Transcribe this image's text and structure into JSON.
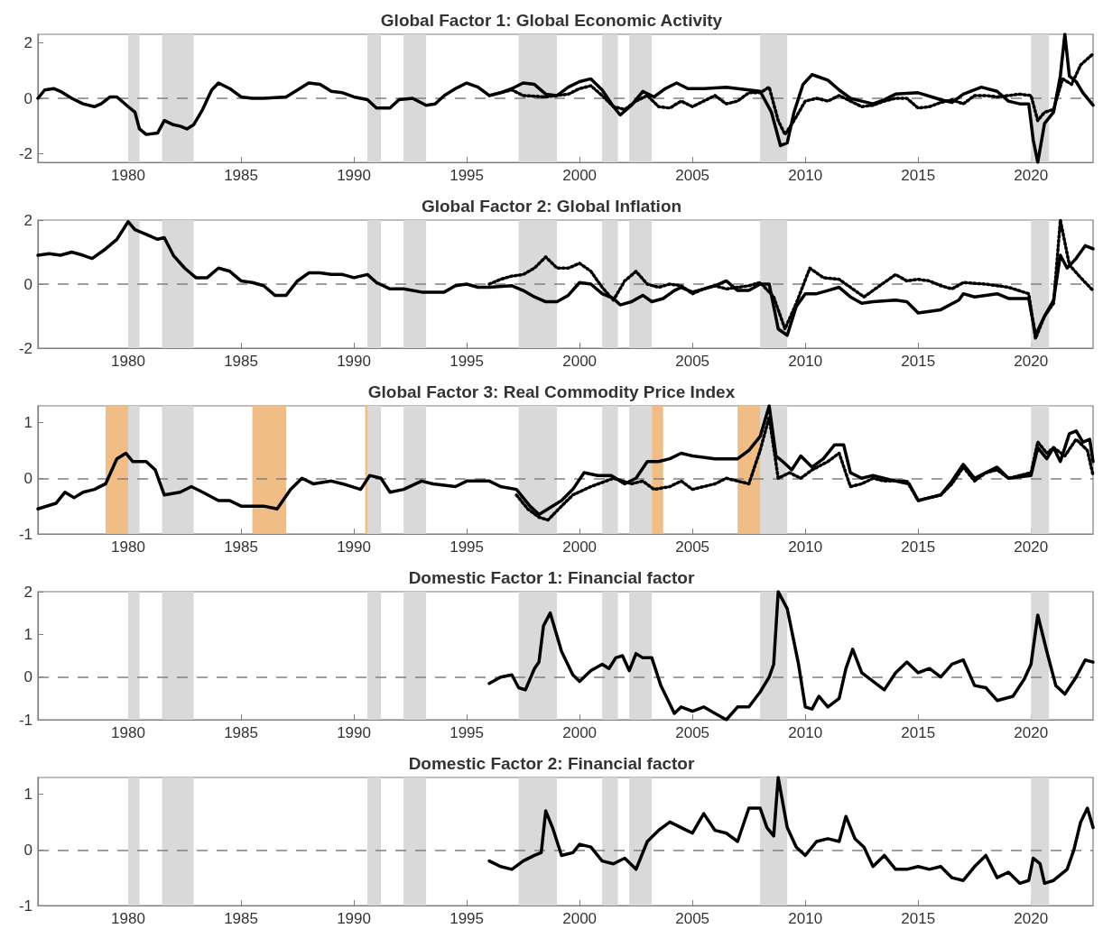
{
  "chart_data": [
    {
      "type": "line",
      "title": "Global Factor 1: Global Economic Activity",
      "xlim": [
        1976,
        2022.75
      ],
      "xticks": [
        1980,
        1985,
        1990,
        1995,
        2000,
        2005,
        2010,
        2015,
        2020
      ],
      "ylim": [
        -2.3,
        2.3
      ],
      "yticks": [
        -2,
        0,
        2
      ],
      "series": [
        {
          "color": "#000000",
          "line_style": "solid",
          "x": [
            1976.0,
            1976.3,
            1976.7,
            1977.0,
            1977.5,
            1978.0,
            1978.5,
            1978.8,
            1979.2,
            1979.5,
            1980.0,
            1980.3,
            1980.5,
            1980.8,
            1981.3,
            1981.6,
            1982.0,
            1982.3,
            1982.6,
            1982.9,
            1983.3,
            1983.7,
            1984.0,
            1984.5,
            1985.0,
            1985.5,
            1986.0,
            1987.0,
            1987.5,
            1988.0,
            1988.5,
            1989.0,
            1989.5,
            1990.0,
            1990.6,
            1991.0,
            1991.6,
            1992.0,
            1992.6,
            1993.2,
            1993.6,
            1994.0,
            1994.5,
            1995.0,
            1995.5,
            1996.0,
            1996.5,
            1997.0,
            1997.5,
            1998.0,
            1998.5,
            1999.0,
            1999.5,
            2000.0,
            2000.5,
            2001.0,
            2001.5,
            2001.8,
            2002.3,
            2002.8,
            2003.3,
            2003.8,
            2004.3,
            2004.8,
            2005.5,
            2006.5,
            2007.5,
            2008.0,
            2008.5,
            2008.9,
            2009.2,
            2009.5,
            2009.9,
            2010.3,
            2011.0,
            2011.5,
            2012.0,
            2012.5,
            2013.0,
            2013.5,
            2014.0,
            2015.0,
            2016.0,
            2016.5,
            2017.0,
            2017.8,
            2018.5,
            2019.0,
            2019.5,
            2019.9,
            2020.1,
            2020.3,
            2020.6,
            2021.0,
            2021.3,
            2021.5,
            2021.7,
            2022.0,
            2022.3,
            2022.75
          ],
          "values": [
            0.0,
            0.3,
            0.35,
            0.25,
            0.0,
            -0.2,
            -0.3,
            -0.2,
            0.05,
            0.05,
            -0.3,
            -0.5,
            -1.1,
            -1.3,
            -1.25,
            -0.8,
            -0.95,
            -1.0,
            -1.1,
            -0.95,
            -0.4,
            0.3,
            0.55,
            0.35,
            0.05,
            0.0,
            0.0,
            0.05,
            0.3,
            0.55,
            0.5,
            0.25,
            0.2,
            0.05,
            -0.05,
            -0.35,
            -0.35,
            -0.05,
            0.0,
            -0.25,
            -0.2,
            0.1,
            0.35,
            0.55,
            0.4,
            0.1,
            0.2,
            0.35,
            0.55,
            0.5,
            0.15,
            0.1,
            0.4,
            0.6,
            0.7,
            0.3,
            -0.3,
            -0.6,
            -0.25,
            0.25,
            0.05,
            0.35,
            0.55,
            0.35,
            0.35,
            0.4,
            0.3,
            0.25,
            -0.5,
            -1.7,
            -1.6,
            -0.5,
            0.5,
            0.85,
            0.65,
            0.3,
            0.0,
            -0.1,
            -0.2,
            -0.05,
            0.15,
            0.2,
            -0.05,
            -0.15,
            0.15,
            0.4,
            0.25,
            -0.1,
            -0.2,
            -0.2,
            -1.5,
            -2.3,
            -0.9,
            -0.5,
            0.8,
            2.3,
            0.8,
            0.6,
            0.2,
            -0.25
          ]
        },
        {
          "color": "#000000",
          "line_style": "dotted",
          "x": [
            1996.0,
            1996.5,
            1997.0,
            1997.5,
            1998.5,
            1999.0,
            1999.5,
            2000.0,
            2000.5,
            2001.0,
            2001.5,
            2002.0,
            2002.5,
            2003.0,
            2003.5,
            2004.0,
            2004.5,
            2005.0,
            2005.5,
            2006.0,
            2006.5,
            2007.0,
            2007.5,
            2008.0,
            2008.4,
            2008.8,
            2009.1,
            2009.5,
            2010.0,
            2010.5,
            2011.0,
            2011.5,
            2012.0,
            2012.5,
            2013.0,
            2013.5,
            2014.0,
            2014.5,
            2015.0,
            2015.5,
            2016.0,
            2016.5,
            2017.0,
            2017.5,
            2018.0,
            2018.5,
            2019.0,
            2019.5,
            2020.0,
            2020.3,
            2020.6,
            2021.0,
            2021.4,
            2021.8,
            2022.2,
            2022.75
          ],
          "values": [
            0.1,
            0.2,
            0.3,
            0.1,
            0.05,
            0.1,
            0.15,
            0.35,
            0.45,
            0.1,
            -0.3,
            -0.4,
            -0.1,
            0.1,
            -0.3,
            -0.35,
            -0.1,
            -0.3,
            -0.1,
            0.1,
            -0.2,
            -0.1,
            0.2,
            0.2,
            0.4,
            -0.8,
            -1.3,
            -0.8,
            -0.1,
            0.0,
            -0.1,
            0.1,
            -0.1,
            -0.3,
            -0.25,
            -0.1,
            0.0,
            0.0,
            -0.35,
            -0.3,
            -0.15,
            -0.05,
            -0.2,
            0.1,
            0.1,
            0.05,
            0.1,
            0.15,
            0.1,
            -0.8,
            -0.5,
            -0.4,
            0.7,
            0.5,
            1.2,
            1.6
          ]
        }
      ],
      "bands": [
        {
          "axis": "x",
          "from": 1980.0,
          "to": 1980.5,
          "color": "#d9d9d9"
        },
        {
          "axis": "x",
          "from": 1981.5,
          "to": 1982.9,
          "color": "#d9d9d9"
        },
        {
          "axis": "x",
          "from": 1990.6,
          "to": 1991.2,
          "color": "#d9d9d9"
        },
        {
          "axis": "x",
          "from": 1992.2,
          "to": 1993.2,
          "color": "#d9d9d9"
        },
        {
          "axis": "x",
          "from": 1997.3,
          "to": 1999.0,
          "color": "#d9d9d9"
        },
        {
          "axis": "x",
          "from": 2001.0,
          "to": 2001.7,
          "color": "#d9d9d9"
        },
        {
          "axis": "x",
          "from": 2002.2,
          "to": 2003.2,
          "color": "#d9d9d9"
        },
        {
          "axis": "x",
          "from": 2008.0,
          "to": 2009.2,
          "color": "#d9d9d9"
        },
        {
          "axis": "x",
          "from": 2020.0,
          "to": 2020.8,
          "color": "#d9d9d9"
        }
      ],
      "ref_lines": [
        {
          "axis": "y",
          "value": 0,
          "color": "#808080",
          "line_style": "dashed"
        }
      ]
    },
    {
      "type": "line",
      "title": "Global Factor 2: Global Inflation",
      "xlim": [
        1976,
        2022.75
      ],
      "xticks": [
        1980,
        1985,
        1990,
        1995,
        2000,
        2005,
        2010,
        2015,
        2020
      ],
      "ylim": [
        -2,
        2
      ],
      "yticks": [
        -2,
        0,
        2
      ],
      "series": [
        {
          "color": "#000000",
          "line_style": "solid",
          "x": [
            1976.0,
            1976.5,
            1977.0,
            1977.5,
            1978.0,
            1978.4,
            1979.0,
            1979.5,
            1980.0,
            1980.3,
            1980.8,
            1981.3,
            1981.6,
            1982.0,
            1982.5,
            1983.0,
            1983.5,
            1984.0,
            1984.5,
            1985.0,
            1985.5,
            1986.0,
            1986.5,
            1987.0,
            1987.5,
            1988.0,
            1988.5,
            1989.0,
            1989.5,
            1990.0,
            1990.6,
            1991.0,
            1991.6,
            1992.2,
            1993.0,
            1994.0,
            1994.5,
            1995.0,
            1995.5,
            1996.0,
            1997.0,
            1997.5,
            1998.0,
            1998.5,
            1999.0,
            1999.5,
            2000.0,
            2000.5,
            2001.0,
            2001.5,
            2001.8,
            2002.3,
            2002.8,
            2003.2,
            2003.7,
            2004.2,
            2004.5,
            2005.0,
            2005.5,
            2006.0,
            2006.5,
            2007.0,
            2007.5,
            2008.0,
            2008.4,
            2008.8,
            2009.2,
            2009.6,
            2010.0,
            2010.5,
            2011.0,
            2011.5,
            2012.0,
            2012.5,
            2013.0,
            2014.0,
            2014.5,
            2015.0,
            2016.0,
            2016.8,
            2017.0,
            2017.5,
            2018.0,
            2018.5,
            2019.0,
            2019.9,
            2020.2,
            2020.6,
            2021.0,
            2021.3,
            2021.6,
            2022.0,
            2022.4,
            2022.75
          ],
          "values": [
            0.9,
            0.95,
            0.9,
            1.0,
            0.9,
            0.8,
            1.1,
            1.4,
            1.95,
            1.7,
            1.55,
            1.4,
            1.45,
            0.9,
            0.5,
            0.2,
            0.2,
            0.5,
            0.4,
            0.1,
            0.05,
            -0.05,
            -0.35,
            -0.35,
            0.1,
            0.35,
            0.35,
            0.3,
            0.3,
            0.2,
            0.3,
            0.05,
            -0.15,
            -0.15,
            -0.25,
            -0.25,
            -0.05,
            0.0,
            -0.1,
            -0.1,
            -0.05,
            -0.2,
            -0.4,
            -0.55,
            -0.55,
            -0.35,
            0.05,
            0.0,
            -0.3,
            -0.45,
            -0.65,
            -0.55,
            -0.35,
            -0.55,
            -0.45,
            -0.2,
            -0.1,
            -0.25,
            -0.15,
            -0.05,
            0.1,
            -0.2,
            -0.2,
            0.0,
            0.0,
            -1.4,
            -1.6,
            -0.7,
            -0.3,
            -0.3,
            -0.2,
            -0.1,
            -0.4,
            -0.6,
            -0.55,
            -0.5,
            -0.55,
            -0.9,
            -0.8,
            -0.5,
            -0.3,
            -0.4,
            -0.35,
            -0.3,
            -0.45,
            -0.45,
            -1.6,
            -1.0,
            -0.5,
            0.9,
            0.5,
            0.8,
            1.2,
            1.1
          ]
        },
        {
          "color": "#000000",
          "line_style": "dotted",
          "x": [
            1996.0,
            1996.5,
            1997.0,
            1997.5,
            1998.0,
            1998.5,
            1999.0,
            1999.5,
            2000.0,
            2000.5,
            2001.0,
            2001.5,
            2002.0,
            2002.5,
            2003.0,
            2003.5,
            2004.0,
            2004.5,
            2005.0,
            2005.5,
            2006.0,
            2006.5,
            2007.0,
            2007.5,
            2008.0,
            2008.6,
            2009.1,
            2009.6,
            2010.2,
            2010.8,
            2011.5,
            2012.0,
            2012.6,
            2013.2,
            2014.0,
            2014.5,
            2015.0,
            2015.5,
            2016.0,
            2016.5,
            2017.0,
            2018.0,
            2019.0,
            2019.9,
            2020.2,
            2020.6,
            2021.0,
            2021.3,
            2021.7,
            2022.2,
            2022.75
          ],
          "values": [
            0.0,
            0.15,
            0.25,
            0.3,
            0.5,
            0.85,
            0.5,
            0.5,
            0.65,
            0.4,
            -0.1,
            -0.5,
            0.1,
            0.4,
            0.0,
            -0.1,
            0.0,
            -0.05,
            -0.3,
            -0.15,
            -0.05,
            -0.15,
            -0.1,
            -0.05,
            0.05,
            -0.4,
            -1.4,
            -0.6,
            0.5,
            0.2,
            0.15,
            -0.1,
            -0.4,
            -0.1,
            0.3,
            0.1,
            0.15,
            0.1,
            -0.05,
            -0.15,
            0.05,
            0.0,
            -0.1,
            -0.3,
            -1.7,
            -1.0,
            -0.6,
            2.0,
            0.6,
            0.2,
            -0.2
          ]
        }
      ],
      "bands": [
        {
          "axis": "x",
          "from": 1980.0,
          "to": 1980.5,
          "color": "#d9d9d9"
        },
        {
          "axis": "x",
          "from": 1981.5,
          "to": 1982.9,
          "color": "#d9d9d9"
        },
        {
          "axis": "x",
          "from": 1990.6,
          "to": 1991.2,
          "color": "#d9d9d9"
        },
        {
          "axis": "x",
          "from": 1992.2,
          "to": 1993.2,
          "color": "#d9d9d9"
        },
        {
          "axis": "x",
          "from": 1997.3,
          "to": 1999.0,
          "color": "#d9d9d9"
        },
        {
          "axis": "x",
          "from": 2001.0,
          "to": 2001.7,
          "color": "#d9d9d9"
        },
        {
          "axis": "x",
          "from": 2002.2,
          "to": 2003.2,
          "color": "#d9d9d9"
        },
        {
          "axis": "x",
          "from": 2008.0,
          "to": 2009.2,
          "color": "#d9d9d9"
        },
        {
          "axis": "x",
          "from": 2020.0,
          "to": 2020.8,
          "color": "#d9d9d9"
        }
      ],
      "ref_lines": [
        {
          "axis": "y",
          "value": 0,
          "color": "#808080",
          "line_style": "dashed"
        }
      ]
    },
    {
      "type": "line",
      "title": "Global Factor 3: Real Commodity Price Index",
      "xlim": [
        1976,
        2022.75
      ],
      "xticks": [
        1980,
        1985,
        1990,
        1995,
        2000,
        2005,
        2010,
        2015,
        2020
      ],
      "ylim": [
        -1,
        1.3
      ],
      "yticks": [
        -1,
        0,
        1
      ],
      "series": [
        {
          "color": "#000000",
          "line_style": "solid",
          "x": [
            1976.0,
            1976.8,
            1977.2,
            1977.6,
            1978.0,
            1978.5,
            1979.0,
            1979.5,
            1979.9,
            1980.2,
            1980.8,
            1981.2,
            1981.6,
            1982.3,
            1982.8,
            1983.3,
            1984.0,
            1984.5,
            1985.0,
            1985.5,
            1986.0,
            1986.6,
            1987.2,
            1987.7,
            1988.2,
            1989.0,
            1989.5,
            1990.3,
            1990.7,
            1991.2,
            1991.6,
            1992.2,
            1993.0,
            1993.5,
            1994.5,
            1995.0,
            1996.0,
            1996.5,
            1997.2,
            1997.8,
            1998.2,
            1998.6,
            1999.2,
            1999.7,
            2000.2,
            2000.8,
            2001.4,
            2002.0,
            2002.5,
            2003.0,
            2003.5,
            2004.0,
            2004.5,
            2005.0,
            2006.0,
            2007.0,
            2007.5,
            2008.0,
            2008.4,
            2008.7,
            2009.0,
            2009.4,
            2009.8,
            2010.3,
            2010.8,
            2011.3,
            2011.7,
            2012.0,
            2012.5,
            2013.0,
            2014.0,
            2014.6,
            2015.0,
            2015.5,
            2016.0,
            2016.5,
            2017.0,
            2017.5,
            2018.0,
            2018.5,
            2019.0,
            2020.0,
            2020.3,
            2020.7,
            2021.0,
            2021.3,
            2021.7,
            2022.0,
            2022.3,
            2022.6,
            2022.75
          ],
          "values": [
            -0.55,
            -0.45,
            -0.25,
            -0.35,
            -0.25,
            -0.2,
            -0.1,
            0.35,
            0.45,
            0.3,
            0.3,
            0.15,
            -0.3,
            -0.25,
            -0.15,
            -0.25,
            -0.4,
            -0.4,
            -0.5,
            -0.5,
            -0.5,
            -0.55,
            -0.2,
            0.0,
            -0.1,
            -0.05,
            -0.1,
            -0.2,
            0.05,
            0.0,
            -0.25,
            -0.2,
            -0.05,
            -0.1,
            -0.15,
            -0.05,
            -0.05,
            -0.15,
            -0.2,
            -0.5,
            -0.65,
            -0.55,
            -0.4,
            -0.2,
            0.1,
            0.05,
            0.05,
            -0.1,
            0.0,
            0.3,
            0.3,
            0.35,
            0.45,
            0.4,
            0.35,
            0.35,
            0.5,
            0.75,
            1.3,
            0.4,
            0.3,
            0.15,
            0.4,
            0.2,
            0.35,
            0.6,
            0.6,
            0.1,
            0.0,
            0.05,
            -0.05,
            -0.1,
            -0.4,
            -0.35,
            -0.3,
            -0.05,
            0.25,
            0.0,
            0.1,
            0.2,
            0.0,
            0.05,
            0.55,
            0.35,
            0.55,
            0.3,
            0.8,
            0.85,
            0.65,
            0.7,
            0.3
          ]
        },
        {
          "color": "#000000",
          "line_style": "dotted",
          "x": [
            1997.2,
            1997.7,
            1998.2,
            1998.6,
            1999.2,
            1999.7,
            2000.5,
            2001.5,
            2002.3,
            2002.8,
            2003.3,
            2004.0,
            2004.5,
            2005.0,
            2006.0,
            2006.5,
            2007.0,
            2007.5,
            2008.0,
            2008.4,
            2008.8,
            2009.3,
            2009.8,
            2010.3,
            2011.0,
            2011.5,
            2012.0,
            2012.5,
            2013.0,
            2013.5,
            2014.5,
            2015.0,
            2016.0,
            2016.5,
            2017.0,
            2017.5,
            2018.0,
            2018.5,
            2019.0,
            2020.0,
            2020.3,
            2020.7,
            2021.0,
            2021.5,
            2022.0,
            2022.5,
            2022.75
          ],
          "values": [
            -0.3,
            -0.55,
            -0.7,
            -0.75,
            -0.5,
            -0.3,
            -0.15,
            0.0,
            -0.1,
            -0.05,
            -0.2,
            -0.15,
            -0.05,
            -0.2,
            -0.1,
            0.0,
            -0.05,
            -0.1,
            0.5,
            1.1,
            0.0,
            0.1,
            0.0,
            0.15,
            0.3,
            0.45,
            -0.15,
            -0.1,
            0.0,
            -0.05,
            -0.05,
            -0.4,
            -0.3,
            -0.1,
            0.2,
            -0.05,
            0.1,
            0.15,
            0.0,
            0.1,
            0.65,
            0.45,
            0.55,
            0.4,
            0.7,
            0.5,
            0.05
          ]
        }
      ],
      "bands": [
        {
          "axis": "x",
          "from": 1979.0,
          "to": 1980.0,
          "color": "#efbd85"
        },
        {
          "axis": "x",
          "from": 1985.5,
          "to": 1987.0,
          "color": "#efbd85"
        },
        {
          "axis": "x",
          "from": 1990.5,
          "to": 1990.7,
          "color": "#efbd85"
        },
        {
          "axis": "x",
          "from": 2003.2,
          "to": 2003.7,
          "color": "#efbd85"
        },
        {
          "axis": "x",
          "from": 2007.0,
          "to": 2008.5,
          "color": "#efbd85"
        },
        {
          "axis": "x",
          "from": 1980.0,
          "to": 1980.5,
          "color": "#d9d9d9"
        },
        {
          "axis": "x",
          "from": 1981.5,
          "to": 1982.9,
          "color": "#d9d9d9"
        },
        {
          "axis": "x",
          "from": 1990.6,
          "to": 1991.2,
          "color": "#d9d9d9"
        },
        {
          "axis": "x",
          "from": 1992.2,
          "to": 1993.2,
          "color": "#d9d9d9"
        },
        {
          "axis": "x",
          "from": 1997.3,
          "to": 1999.0,
          "color": "#d9d9d9"
        },
        {
          "axis": "x",
          "from": 2001.0,
          "to": 2001.7,
          "color": "#d9d9d9"
        },
        {
          "axis": "x",
          "from": 2002.2,
          "to": 2003.2,
          "color": "#d9d9d9"
        },
        {
          "axis": "x",
          "from": 2008.0,
          "to": 2009.2,
          "color": "#d9d9d9"
        },
        {
          "axis": "x",
          "from": 2020.0,
          "to": 2020.8,
          "color": "#d9d9d9"
        }
      ],
      "ref_lines": [
        {
          "axis": "y",
          "value": 0,
          "color": "#808080",
          "line_style": "dashed"
        }
      ]
    },
    {
      "type": "line",
      "title": "Domestic Factor 1: Financial factor",
      "xlim": [
        1976,
        2022.75
      ],
      "xticks": [
        1980,
        1985,
        1990,
        1995,
        2000,
        2005,
        2010,
        2015,
        2020
      ],
      "ylim": [
        -1,
        2
      ],
      "yticks": [
        -1,
        0,
        1,
        2
      ],
      "series": [
        {
          "color": "#000000",
          "line_style": "solid",
          "x": [
            1996.0,
            1996.5,
            1997.0,
            1997.3,
            1997.6,
            1998.0,
            1998.2,
            1998.4,
            1998.7,
            1999.2,
            1999.7,
            2000.0,
            2000.5,
            2001.0,
            2001.3,
            2001.6,
            2001.9,
            2002.2,
            2002.5,
            2002.8,
            2003.2,
            2003.6,
            2004.2,
            2004.5,
            2005.0,
            2005.5,
            2006.0,
            2006.5,
            2007.0,
            2007.5,
            2008.0,
            2008.4,
            2008.6,
            2008.8,
            2009.2,
            2009.7,
            2010.0,
            2010.3,
            2010.6,
            2011.0,
            2011.5,
            2011.8,
            2012.1,
            2012.5,
            2013.0,
            2013.5,
            2014.0,
            2014.5,
            2015.0,
            2015.5,
            2016.0,
            2016.5,
            2017.0,
            2017.5,
            2018.0,
            2018.5,
            2019.2,
            2019.7,
            2020.0,
            2020.3,
            2020.7,
            2021.1,
            2021.5,
            2022.0,
            2022.4,
            2022.75
          ],
          "values": [
            -0.15,
            0.0,
            0.05,
            -0.25,
            -0.3,
            0.2,
            0.35,
            1.2,
            1.5,
            0.6,
            0.05,
            -0.1,
            0.15,
            0.3,
            0.2,
            0.45,
            0.5,
            0.15,
            0.55,
            0.45,
            0.45,
            -0.2,
            -0.85,
            -0.7,
            -0.8,
            -0.7,
            -0.85,
            -1.0,
            -0.7,
            -0.7,
            -0.35,
            0.0,
            0.3,
            2.0,
            1.6,
            0.3,
            -0.7,
            -0.75,
            -0.45,
            -0.7,
            -0.5,
            0.2,
            0.65,
            0.1,
            -0.1,
            -0.3,
            0.1,
            0.35,
            0.1,
            0.2,
            0.0,
            0.3,
            0.4,
            -0.2,
            -0.25,
            -0.55,
            -0.45,
            -0.05,
            0.3,
            1.45,
            0.6,
            -0.2,
            -0.4,
            0.0,
            0.4,
            0.35
          ]
        }
      ],
      "bands": [
        {
          "axis": "x",
          "from": 1980.0,
          "to": 1980.5,
          "color": "#d9d9d9"
        },
        {
          "axis": "x",
          "from": 1981.5,
          "to": 1982.9,
          "color": "#d9d9d9"
        },
        {
          "axis": "x",
          "from": 1990.6,
          "to": 1991.2,
          "color": "#d9d9d9"
        },
        {
          "axis": "x",
          "from": 1992.2,
          "to": 1993.2,
          "color": "#d9d9d9"
        },
        {
          "axis": "x",
          "from": 1997.3,
          "to": 1999.0,
          "color": "#d9d9d9"
        },
        {
          "axis": "x",
          "from": 2001.0,
          "to": 2001.7,
          "color": "#d9d9d9"
        },
        {
          "axis": "x",
          "from": 2002.2,
          "to": 2003.2,
          "color": "#d9d9d9"
        },
        {
          "axis": "x",
          "from": 2008.0,
          "to": 2009.2,
          "color": "#d9d9d9"
        },
        {
          "axis": "x",
          "from": 2020.0,
          "to": 2020.8,
          "color": "#d9d9d9"
        }
      ],
      "ref_lines": [
        {
          "axis": "y",
          "value": 0,
          "color": "#808080",
          "line_style": "dashed"
        }
      ]
    },
    {
      "type": "line",
      "title": "Domestic Factor 2: Financial factor",
      "xlim": [
        1976,
        2022.75
      ],
      "xticks": [
        1980,
        1985,
        1990,
        1995,
        2000,
        2005,
        2010,
        2015,
        2020
      ],
      "ylim": [
        -1,
        1.3
      ],
      "yticks": [
        -1,
        0,
        1
      ],
      "series": [
        {
          "color": "#000000",
          "line_style": "solid",
          "x": [
            1996.0,
            1996.5,
            1997.0,
            1997.5,
            1998.0,
            1998.3,
            1998.5,
            1998.8,
            1999.2,
            1999.7,
            2000.0,
            2000.5,
            2001.0,
            2001.5,
            2002.0,
            2002.5,
            2003.0,
            2003.5,
            2004.0,
            2004.5,
            2005.0,
            2005.5,
            2006.0,
            2006.5,
            2007.0,
            2007.5,
            2008.0,
            2008.3,
            2008.6,
            2008.8,
            2009.2,
            2009.6,
            2010.0,
            2010.5,
            2011.0,
            2011.5,
            2011.8,
            2012.2,
            2012.6,
            2013.0,
            2013.5,
            2014.0,
            2014.5,
            2015.0,
            2015.5,
            2016.0,
            2016.5,
            2017.0,
            2017.5,
            2018.0,
            2018.5,
            2019.0,
            2019.5,
            2019.9,
            2020.1,
            2020.4,
            2020.6,
            2021.0,
            2021.6,
            2021.9,
            2022.2,
            2022.5,
            2022.75
          ],
          "values": [
            -0.2,
            -0.3,
            -0.35,
            -0.2,
            -0.1,
            -0.05,
            0.7,
            0.4,
            -0.1,
            -0.05,
            0.1,
            0.05,
            -0.2,
            -0.25,
            -0.15,
            -0.35,
            0.15,
            0.35,
            0.5,
            0.4,
            0.3,
            0.65,
            0.35,
            0.3,
            0.15,
            0.75,
            0.75,
            0.4,
            0.25,
            1.3,
            0.4,
            0.05,
            -0.1,
            0.15,
            0.2,
            0.15,
            0.6,
            0.2,
            0.05,
            -0.3,
            -0.1,
            -0.35,
            -0.35,
            -0.3,
            -0.35,
            -0.3,
            -0.5,
            -0.55,
            -0.3,
            -0.1,
            -0.5,
            -0.4,
            -0.6,
            -0.55,
            -0.15,
            -0.25,
            -0.6,
            -0.55,
            -0.35,
            0.0,
            0.5,
            0.75,
            0.4
          ]
        }
      ],
      "bands": [
        {
          "axis": "x",
          "from": 1980.0,
          "to": 1980.5,
          "color": "#d9d9d9"
        },
        {
          "axis": "x",
          "from": 1981.5,
          "to": 1982.9,
          "color": "#d9d9d9"
        },
        {
          "axis": "x",
          "from": 1990.6,
          "to": 1991.2,
          "color": "#d9d9d9"
        },
        {
          "axis": "x",
          "from": 1992.2,
          "to": 1993.2,
          "color": "#d9d9d9"
        },
        {
          "axis": "x",
          "from": 1997.3,
          "to": 1999.0,
          "color": "#d9d9d9"
        },
        {
          "axis": "x",
          "from": 2001.0,
          "to": 2001.7,
          "color": "#d9d9d9"
        },
        {
          "axis": "x",
          "from": 2002.2,
          "to": 2003.2,
          "color": "#d9d9d9"
        },
        {
          "axis": "x",
          "from": 2008.0,
          "to": 2009.2,
          "color": "#d9d9d9"
        },
        {
          "axis": "x",
          "from": 2020.0,
          "to": 2020.8,
          "color": "#d9d9d9"
        }
      ],
      "ref_lines": [
        {
          "axis": "y",
          "value": 0,
          "color": "#808080",
          "line_style": "dashed"
        }
      ]
    }
  ]
}
